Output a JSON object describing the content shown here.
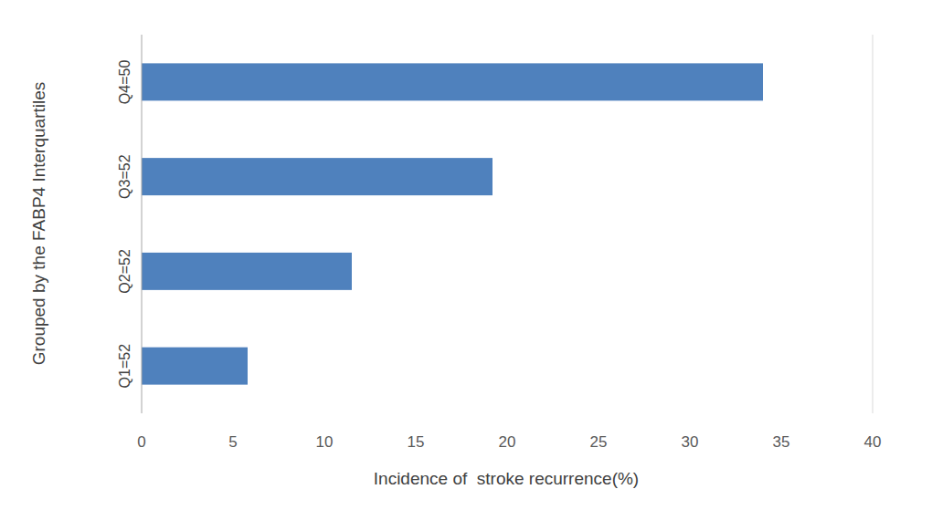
{
  "chart_data": {
    "type": "bar",
    "orientation": "horizontal",
    "y_label": "Grouped by the FABP4 Interquartiles",
    "x_label": "Incidence of  stroke recurrence(%)",
    "categories": [
      "Q1=52",
      "Q2=52",
      "Q3=52",
      "Q4=50"
    ],
    "values": [
      5.8,
      11.5,
      19.2,
      34.0
    ],
    "color": "#4f81bd",
    "xlim": [
      0,
      40
    ],
    "xticks": [
      0,
      5,
      10,
      15,
      20,
      25,
      30,
      35,
      40
    ],
    "grid": false
  }
}
